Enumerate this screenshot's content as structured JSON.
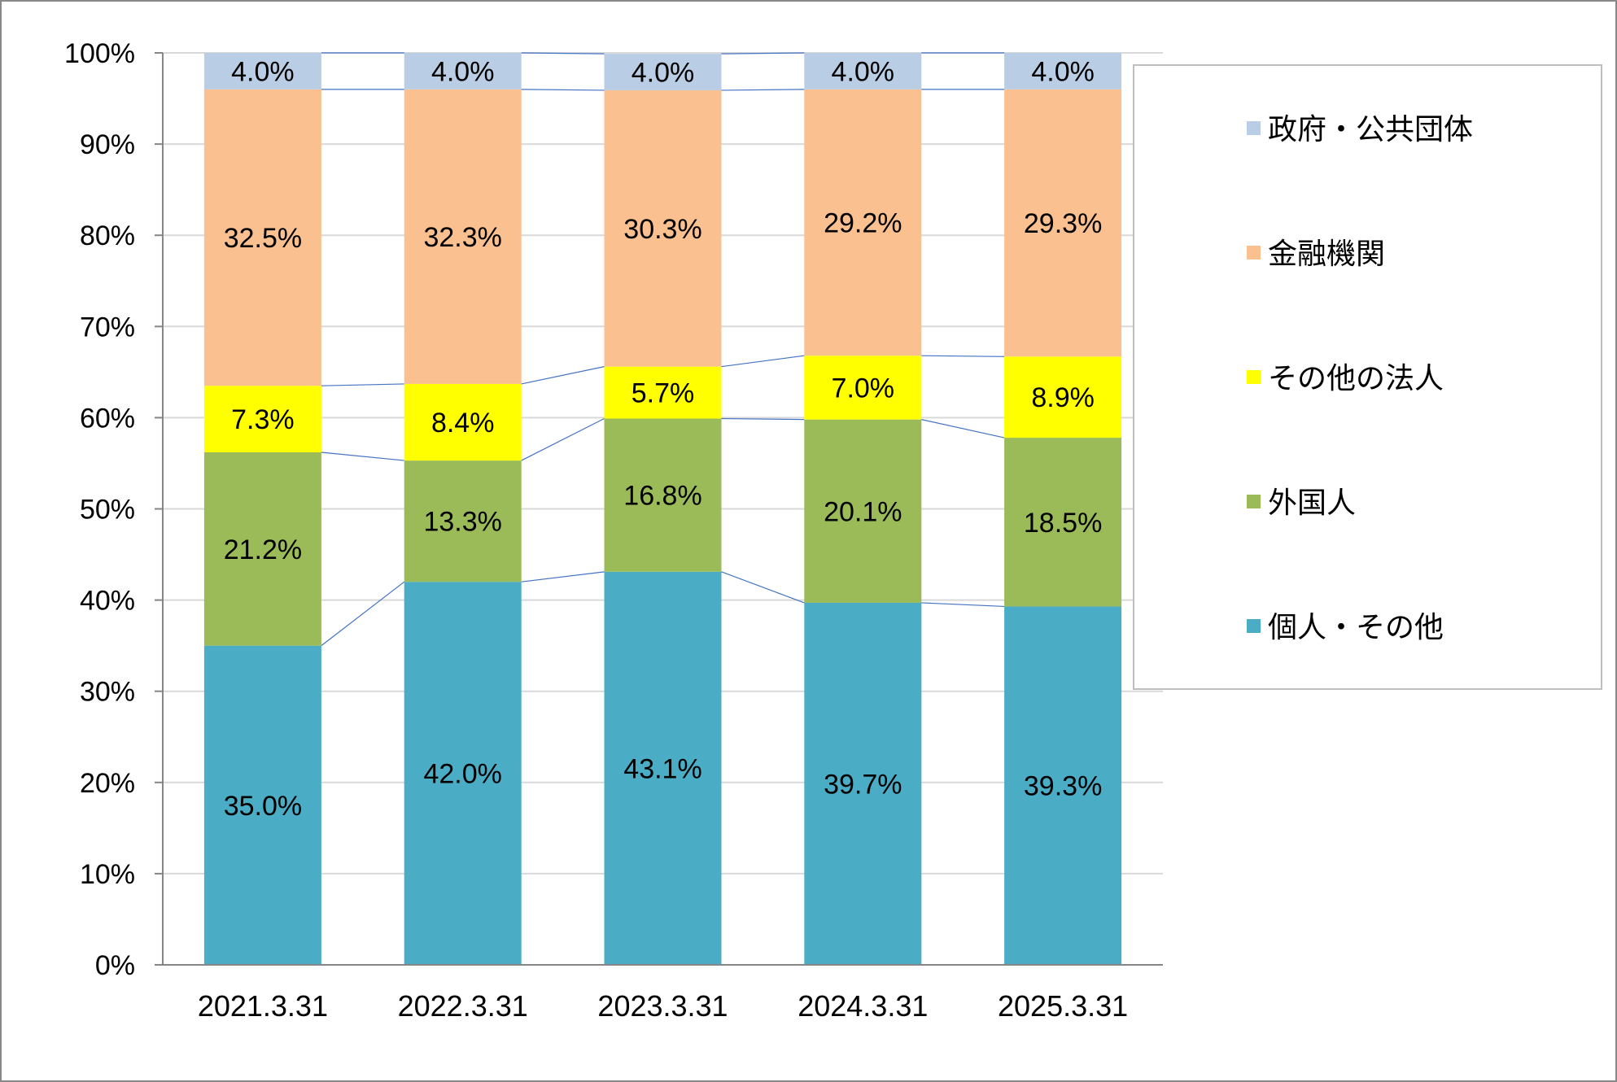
{
  "chart_data": {
    "type": "bar",
    "stacked": true,
    "percent_stacked": true,
    "categories": [
      "2021.3.31",
      "2022.3.31",
      "2023.3.31",
      "2024.3.31",
      "2025.3.31"
    ],
    "series": [
      {
        "name": "個人・その他",
        "color": "#4BACC6",
        "values": [
          35.0,
          42.0,
          43.1,
          39.7,
          39.3
        ]
      },
      {
        "name": "外国人",
        "color": "#9BBB59",
        "values": [
          21.2,
          13.3,
          16.8,
          20.1,
          18.5
        ]
      },
      {
        "name": "その他の法人",
        "color": "#FFFF00",
        "values": [
          7.3,
          8.4,
          5.7,
          7.0,
          8.9
        ]
      },
      {
        "name": "金融機関",
        "color": "#FAC090",
        "values": [
          32.5,
          32.3,
          30.3,
          29.2,
          29.3
        ]
      },
      {
        "name": "政府・公共団体",
        "color": "#B9CDE5",
        "values": [
          4.0,
          4.0,
          4.0,
          4.0,
          4.0
        ]
      }
    ],
    "y_ticks": [
      "0%",
      "10%",
      "20%",
      "30%",
      "40%",
      "50%",
      "60%",
      "70%",
      "80%",
      "90%",
      "100%"
    ],
    "ylim": [
      0,
      100
    ],
    "grid": true,
    "series_lines": true,
    "series_line_color": "#4472C4",
    "legend_placement": "right",
    "legend_order": [
      "政府・公共団体",
      "金融機関",
      "その他の法人",
      "外国人",
      "個人・その他"
    ]
  }
}
